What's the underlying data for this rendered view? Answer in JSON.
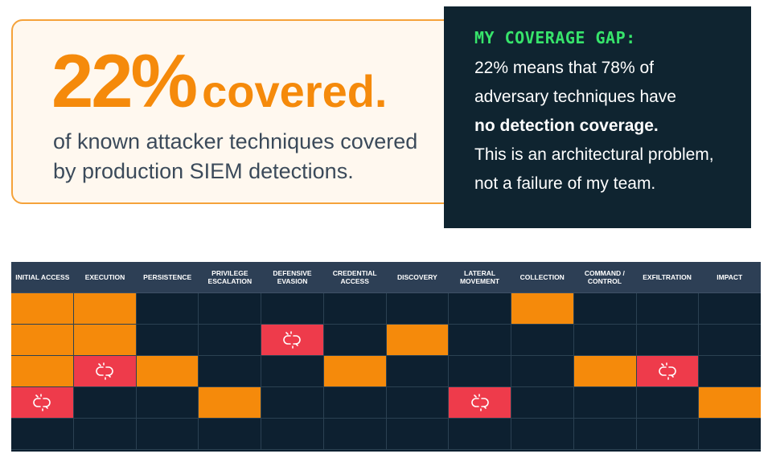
{
  "headline": {
    "percent": "22%",
    "word": "covered.",
    "description": "of known attacker techniques covered by production SIEM detections."
  },
  "gap_panel": {
    "title": "MY COVERAGE GAP:",
    "lines": [
      "22% means that 78% of",
      "adversary techniques have",
      "no detection coverage.",
      "This is an architectural problem,",
      "not a failure of my team."
    ]
  },
  "matrix": {
    "columns": [
      "INITIAL ACCESS",
      "EXECUTION",
      "PERSISTENCE",
      "PRIVILEGE ESCALATION",
      "DEFENSIVE EVASION",
      "CREDENTIAL ACCESS",
      "DISCOVERY",
      "LATERAL MOVEMENT",
      "COLLECTION",
      "COMMAND / CONTROL",
      "EXFILTRATION",
      "IMPACT"
    ],
    "legend_states": [
      "covered",
      "gap",
      "empty"
    ],
    "rows": [
      [
        "covered",
        "covered",
        "empty",
        "empty",
        "empty",
        "empty",
        "empty",
        "empty",
        "covered",
        "empty",
        "empty",
        "empty"
      ],
      [
        "covered",
        "covered",
        "empty",
        "empty",
        "gap",
        "empty",
        "covered",
        "empty",
        "empty",
        "empty",
        "empty",
        "empty"
      ],
      [
        "covered",
        "gap",
        "covered",
        "empty",
        "empty",
        "covered",
        "empty",
        "empty",
        "empty",
        "covered",
        "gap",
        "empty"
      ],
      [
        "gap",
        "empty",
        "empty",
        "covered",
        "empty",
        "empty",
        "empty",
        "gap",
        "empty",
        "empty",
        "empty",
        "covered"
      ],
      [
        "empty",
        "empty",
        "empty",
        "empty",
        "empty",
        "empty",
        "empty",
        "empty",
        "empty",
        "empty",
        "empty",
        "empty"
      ]
    ],
    "colors": {
      "covered": "#f58a0b",
      "gap": "#ee3b4b",
      "empty": "#0d2030"
    },
    "gap_icon": "broken-link-icon"
  }
}
